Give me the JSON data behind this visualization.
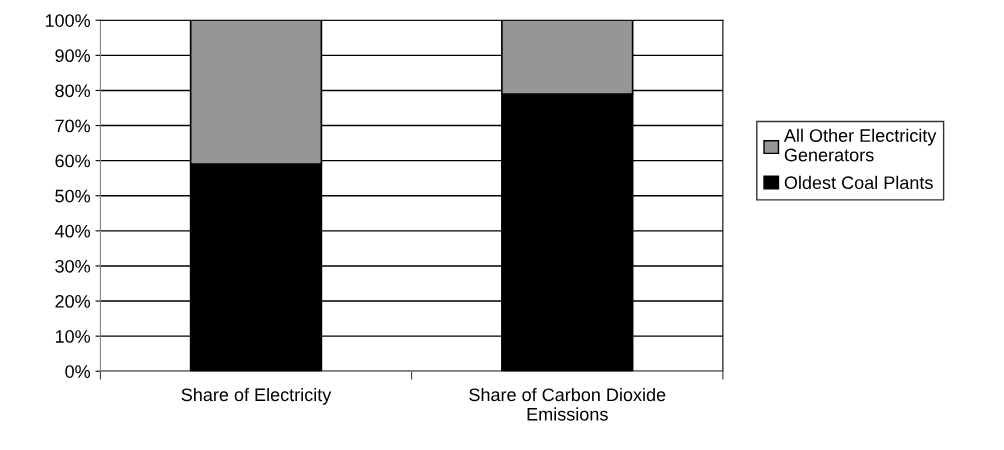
{
  "chart_data": {
    "type": "bar",
    "stacked": true,
    "categories": [
      "Share of Electricity",
      "Share of Carbon Dioxide\nEmissions"
    ],
    "series": [
      {
        "name": "Oldest Coal Plants",
        "color": "#000000",
        "values": [
          59,
          79
        ]
      },
      {
        "name": "All Other Electricity\nGenerators",
        "color": "#969696",
        "values": [
          41,
          21
        ]
      }
    ],
    "ylim": [
      0,
      100
    ],
    "yticks": [
      {
        "value": 0,
        "label": "0%"
      },
      {
        "value": 10,
        "label": "10%"
      },
      {
        "value": 20,
        "label": "20%"
      },
      {
        "value": 30,
        "label": "30%"
      },
      {
        "value": 40,
        "label": "40%"
      },
      {
        "value": 50,
        "label": "50%"
      },
      {
        "value": 60,
        "label": "60%"
      },
      {
        "value": 70,
        "label": "70%"
      },
      {
        "value": 80,
        "label": "80%"
      },
      {
        "value": 90,
        "label": "90%"
      },
      {
        "value": 100,
        "label": "100%"
      }
    ],
    "grid": "y",
    "legend": "right"
  }
}
